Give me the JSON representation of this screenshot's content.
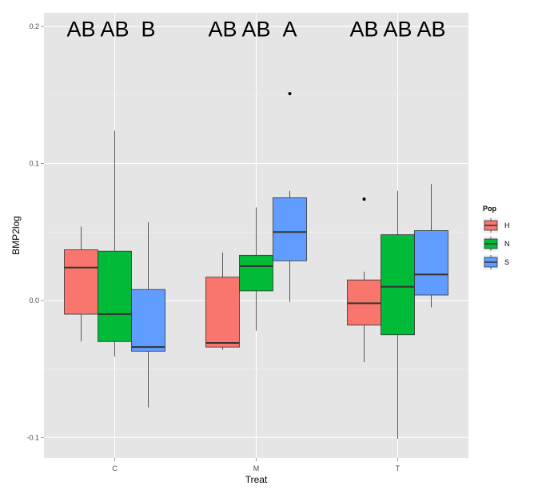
{
  "chart_data": {
    "type": "boxplot",
    "xlabel": "Treat",
    "ylabel": "BMP2log",
    "categories": [
      "C",
      "M",
      "T"
    ],
    "ylim": [
      -0.115,
      0.21
    ],
    "yticks": [
      -0.1,
      0.0,
      0.1,
      0.2
    ],
    "ytick_labels": [
      "-0.1",
      "0.0",
      "0.1",
      "0.2"
    ],
    "grid": true,
    "legend": {
      "title": "Pop",
      "position": "right",
      "entries": [
        {
          "name": "H",
          "color": "#F8766D"
        },
        {
          "name": "N",
          "color": "#00BA38"
        },
        {
          "name": "S",
          "color": "#619CFF"
        }
      ]
    },
    "series": [
      {
        "name": "H",
        "color": "#F8766D",
        "boxes": [
          {
            "category": "C",
            "min": -0.03,
            "q1": -0.01,
            "median": 0.024,
            "q3": 0.037,
            "max": 0.054,
            "outliers": []
          },
          {
            "category": "M",
            "min": -0.036,
            "q1": -0.034,
            "median": -0.031,
            "q3": 0.017,
            "max": 0.035,
            "outliers": []
          },
          {
            "category": "T",
            "min": -0.045,
            "q1": -0.018,
            "median": -0.002,
            "q3": 0.015,
            "max": 0.021,
            "outliers": [
              0.074
            ]
          }
        ]
      },
      {
        "name": "N",
        "color": "#00BA38",
        "boxes": [
          {
            "category": "C",
            "min": -0.041,
            "q1": -0.03,
            "median": -0.01,
            "q3": 0.036,
            "max": 0.124,
            "outliers": []
          },
          {
            "category": "M",
            "min": -0.022,
            "q1": 0.007,
            "median": 0.025,
            "q3": 0.033,
            "max": 0.068,
            "outliers": []
          },
          {
            "category": "T",
            "min": -0.101,
            "q1": -0.025,
            "median": 0.01,
            "q3": 0.048,
            "max": 0.08,
            "outliers": []
          }
        ]
      },
      {
        "name": "S",
        "color": "#619CFF",
        "boxes": [
          {
            "category": "C",
            "min": -0.078,
            "q1": -0.037,
            "median": -0.034,
            "q3": 0.008,
            "max": 0.057,
            "outliers": []
          },
          {
            "category": "M",
            "min": -0.001,
            "q1": 0.029,
            "median": 0.05,
            "q3": 0.075,
            "max": 0.08,
            "outliers": [
              0.151
            ]
          },
          {
            "category": "T",
            "min": -0.005,
            "q1": 0.004,
            "median": 0.019,
            "q3": 0.051,
            "max": 0.085,
            "outliers": []
          }
        ]
      }
    ],
    "annotations": [
      {
        "category": "C",
        "series": "H",
        "text": "AB"
      },
      {
        "category": "C",
        "series": "N",
        "text": "AB"
      },
      {
        "category": "C",
        "series": "S",
        "text": "B"
      },
      {
        "category": "M",
        "series": "H",
        "text": "AB"
      },
      {
        "category": "M",
        "series": "N",
        "text": "AB"
      },
      {
        "category": "M",
        "series": "S",
        "text": "A"
      },
      {
        "category": "T",
        "series": "H",
        "text": "AB"
      },
      {
        "category": "T",
        "series": "N",
        "text": "AB"
      },
      {
        "category": "T",
        "series": "S",
        "text": "AB"
      }
    ],
    "annotation_y": 0.198
  }
}
